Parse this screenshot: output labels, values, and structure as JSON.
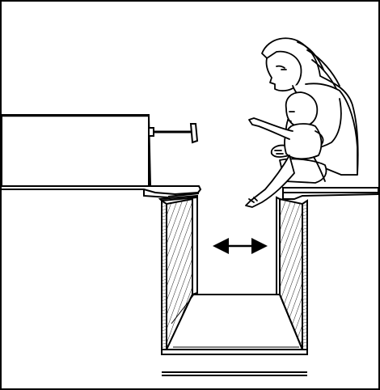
{
  "figure": {
    "colors": {
      "stroke": "#000000",
      "background": "#ffffff",
      "hatch": "#202020"
    },
    "elements": {
      "left_platform": "left-platform",
      "right_platform": "right-platform",
      "gap_channel": "gap-channel",
      "arrow": "double-arrow",
      "apparatus_box": "apparatus-box",
      "toy_stick": "toy-stick",
      "woman": "woman",
      "baby": "baby"
    }
  }
}
